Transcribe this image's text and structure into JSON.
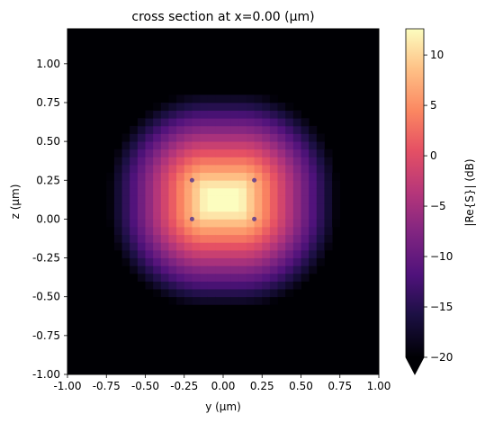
{
  "chart_data": {
    "type": "heatmap",
    "title": "cross section at x=0.00 (μm)",
    "xlabel": "y (μm)",
    "ylabel": "z (μm)",
    "xlim": [
      -1.0,
      1.0
    ],
    "ylim": [
      -1.0,
      1.225
    ],
    "x_ticks": [
      -1.0,
      -0.75,
      -0.5,
      -0.25,
      0.0,
      0.25,
      0.5,
      0.75,
      1.0
    ],
    "x_tick_labels": [
      "-1.00",
      "-0.75",
      "-0.50",
      "-0.25",
      "0.00",
      "0.25",
      "0.50",
      "0.75",
      "1.00"
    ],
    "y_ticks": [
      -1.0,
      -0.75,
      -0.5,
      -0.25,
      0.0,
      0.25,
      0.5,
      0.75,
      1.0
    ],
    "y_tick_labels": [
      "-1.00",
      "-0.75",
      "-0.50",
      "-0.25",
      "0.00",
      "0.25",
      "0.50",
      "0.75",
      "1.00"
    ],
    "field": {
      "center": [
        0.0,
        0.125
      ],
      "peak_db": 12.6,
      "floor_db": -20,
      "core_y": [
        -0.2,
        0.2
      ],
      "core_z": [
        0.0,
        0.25
      ],
      "grid_step": 0.05
    },
    "waveguide_corners": [
      [
        -0.2,
        0.0
      ],
      [
        0.2,
        0.0
      ],
      [
        -0.2,
        0.25
      ],
      [
        0.2,
        0.25
      ]
    ],
    "colorbar": {
      "label": "|Re{S}| (dB)",
      "colormap": "magma",
      "vmin": -20,
      "vmax": 12.6,
      "ticks": [
        -20,
        -15,
        -10,
        -5,
        0,
        5,
        10
      ],
      "tick_labels": [
        "−20",
        "−15",
        "−10",
        "−5",
        "0",
        "5",
        "10"
      ],
      "extend": "min"
    }
  }
}
